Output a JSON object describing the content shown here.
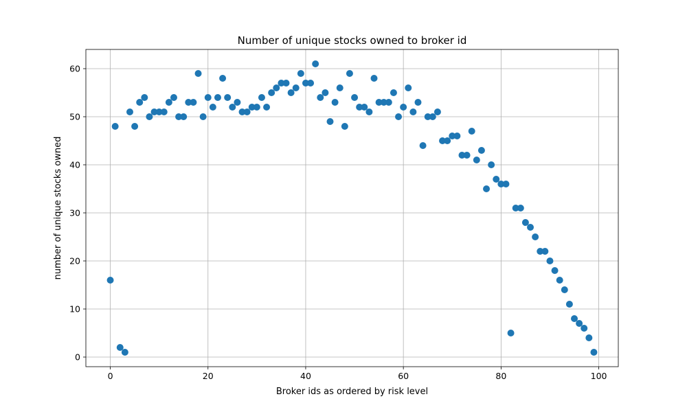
{
  "chart_data": {
    "type": "scatter",
    "title": "Number of unique stocks owned to broker id",
    "xlabel": "Broker ids as ordered by risk level",
    "ylabel": "number of unique stocks owned",
    "xlim": [
      -5,
      104
    ],
    "ylim": [
      -2,
      64
    ],
    "xticks": [
      0,
      20,
      40,
      60,
      80,
      100
    ],
    "yticks": [
      0,
      10,
      20,
      30,
      40,
      50,
      60
    ],
    "grid": true,
    "marker_color": "#1f77b4",
    "x": [
      0,
      1,
      2,
      3,
      4,
      5,
      6,
      7,
      8,
      9,
      10,
      11,
      12,
      13,
      14,
      15,
      16,
      17,
      18,
      19,
      20,
      21,
      22,
      23,
      24,
      25,
      26,
      27,
      28,
      29,
      30,
      31,
      32,
      33,
      34,
      35,
      36,
      37,
      38,
      39,
      40,
      41,
      42,
      43,
      44,
      45,
      46,
      47,
      48,
      49,
      50,
      51,
      52,
      53,
      54,
      55,
      56,
      57,
      58,
      59,
      60,
      61,
      62,
      63,
      64,
      65,
      66,
      67,
      68,
      69,
      70,
      71,
      72,
      73,
      74,
      75,
      76,
      77,
      78,
      79,
      80,
      81,
      82,
      83,
      84,
      85,
      86,
      87,
      88,
      89,
      90,
      91,
      92,
      93,
      94,
      95,
      96,
      97,
      98,
      99
    ],
    "y": [
      16,
      48,
      2,
      1,
      51,
      48,
      53,
      54,
      50,
      51,
      51,
      51,
      53,
      54,
      50,
      50,
      53,
      53,
      59,
      50,
      54,
      52,
      54,
      58,
      54,
      52,
      53,
      51,
      51,
      52,
      52,
      54,
      52,
      55,
      56,
      57,
      57,
      55,
      56,
      59,
      57,
      57,
      61,
      54,
      55,
      49,
      53,
      56,
      48,
      59,
      54,
      52,
      52,
      51,
      58,
      53,
      53,
      53,
      55,
      50,
      52,
      56,
      51,
      53,
      44,
      50,
      50,
      51,
      45,
      45,
      46,
      46,
      42,
      42,
      47,
      41,
      43,
      35,
      40,
      37,
      36,
      36,
      5,
      31,
      31,
      28,
      27,
      25,
      22,
      22,
      20,
      18,
      16,
      14,
      11,
      8,
      7,
      6,
      4,
      1
    ]
  }
}
